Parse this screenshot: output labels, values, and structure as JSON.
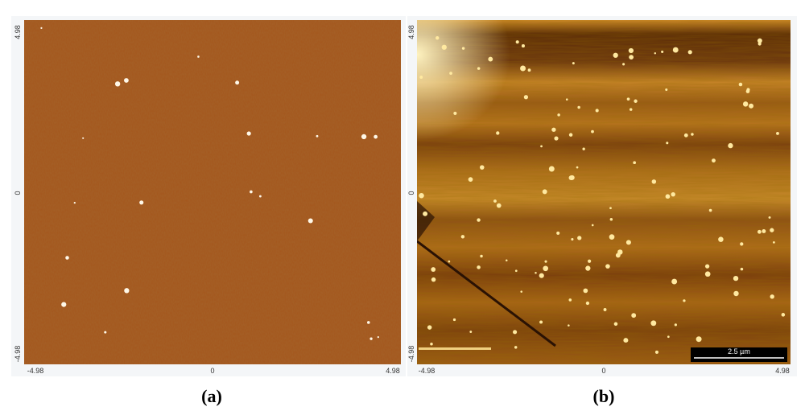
{
  "panels": [
    {
      "y_labels": [
        "4.98",
        "0",
        "-4.98"
      ],
      "x_labels": [
        "-4.98",
        "0",
        "4.98"
      ],
      "caption": "(a)"
    },
    {
      "y_labels": [
        "4.98",
        "0",
        "-4.98"
      ],
      "x_labels": [
        "-4.98",
        "0",
        "4.98"
      ],
      "scale_bar": "2.5 µm",
      "caption": "(b)"
    }
  ]
}
